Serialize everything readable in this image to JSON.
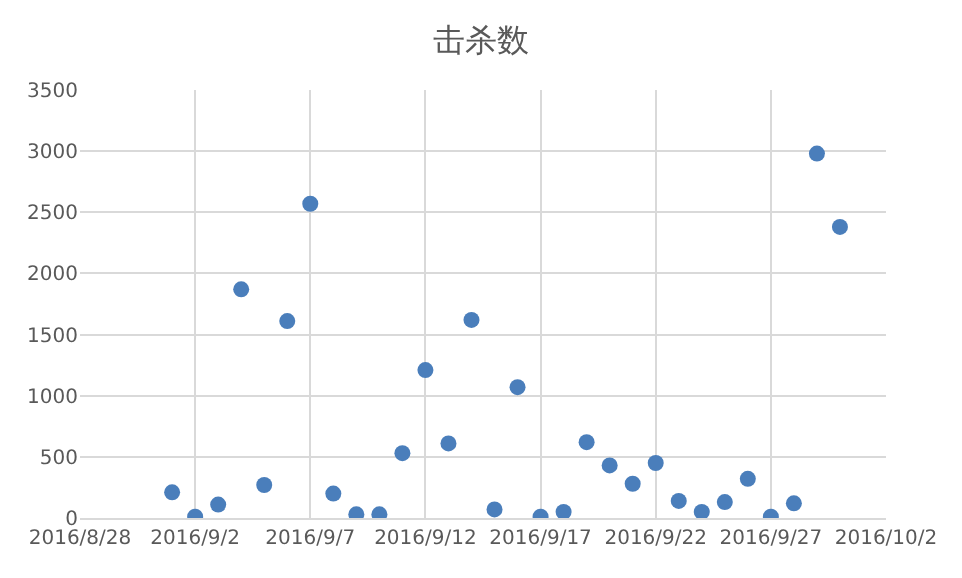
{
  "chart_data": {
    "type": "scatter",
    "title": "击杀数",
    "x": [
      "2016-09-01",
      "2016-09-02",
      "2016-09-03",
      "2016-09-04",
      "2016-09-05",
      "2016-09-06",
      "2016-09-07",
      "2016-09-08",
      "2016-09-09",
      "2016-09-10",
      "2016-09-11",
      "2016-09-12",
      "2016-09-13",
      "2016-09-14",
      "2016-09-15",
      "2016-09-16",
      "2016-09-17",
      "2016-09-18",
      "2016-09-19",
      "2016-09-20",
      "2016-09-21",
      "2016-09-22",
      "2016-09-23",
      "2016-09-24",
      "2016-09-25",
      "2016-09-26",
      "2016-09-27",
      "2016-09-28",
      "2016-09-29",
      "2016-09-30"
    ],
    "values": [
      210,
      10,
      110,
      1870,
      270,
      1610,
      2570,
      200,
      30,
      30,
      530,
      1210,
      610,
      1620,
      70,
      1070,
      10,
      50,
      620,
      430,
      280,
      450,
      140,
      50,
      130,
      320,
      10,
      120,
      2980,
      2380
    ],
    "color": "#4a7ebb",
    "marker": "circle",
    "grid": true,
    "legend": false,
    "xlim": [
      "2016-08-28",
      "2016-10-02"
    ],
    "xticks": [
      {
        "value": "2016-08-28",
        "label": "2016/8/28"
      },
      {
        "value": "2016-09-02",
        "label": "2016/9/2"
      },
      {
        "value": "2016-09-07",
        "label": "2016/9/7"
      },
      {
        "value": "2016-09-12",
        "label": "2016/9/12"
      },
      {
        "value": "2016-09-17",
        "label": "2016/9/17"
      },
      {
        "value": "2016-09-22",
        "label": "2016/9/22"
      },
      {
        "value": "2016-09-27",
        "label": "2016/9/27"
      },
      {
        "value": "2016-10-02",
        "label": "2016/10/2"
      }
    ],
    "ylim": [
      0,
      3500
    ],
    "yticks": [
      0,
      500,
      1000,
      1500,
      2000,
      2500,
      3000,
      3500
    ]
  }
}
